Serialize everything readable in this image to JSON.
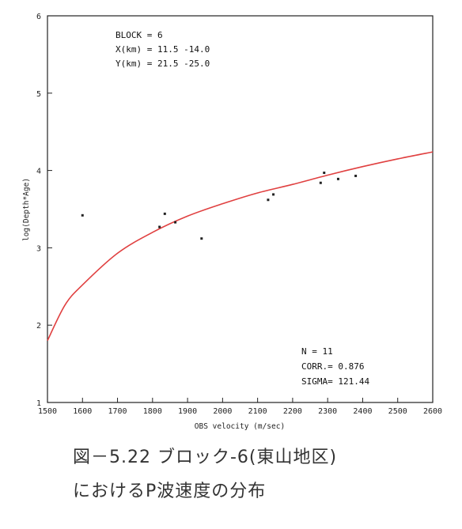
{
  "chart_data": {
    "type": "scatter",
    "xlabel": "OBS velocity (m/sec)",
    "ylabel": "log(Depth*Age)",
    "xlim": [
      1500,
      2600
    ],
    "ylim": [
      1,
      6
    ],
    "xticks": [
      "1500",
      "1600",
      "1700",
      "1800",
      "1900",
      "2000",
      "2100",
      "2200",
      "2300",
      "2400",
      "2500",
      "2600"
    ],
    "yticks": [
      "1",
      "2",
      "3",
      "4",
      "5",
      "6"
    ],
    "points": [
      {
        "x": 1600,
        "y": 3.42
      },
      {
        "x": 1820,
        "y": 3.27
      },
      {
        "x": 1835,
        "y": 3.44
      },
      {
        "x": 1865,
        "y": 3.33
      },
      {
        "x": 1940,
        "y": 3.12
      },
      {
        "x": 2130,
        "y": 3.62
      },
      {
        "x": 2145,
        "y": 3.69
      },
      {
        "x": 2280,
        "y": 3.84
      },
      {
        "x": 2290,
        "y": 3.97
      },
      {
        "x": 2330,
        "y": 3.89
      },
      {
        "x": 2380,
        "y": 3.93
      }
    ],
    "fit_curve": [
      {
        "x": 1500,
        "y": 1.8
      },
      {
        "x": 1550,
        "y": 2.26
      },
      {
        "x": 1600,
        "y": 2.52
      },
      {
        "x": 1700,
        "y": 2.93
      },
      {
        "x": 1800,
        "y": 3.2
      },
      {
        "x": 1900,
        "y": 3.41
      },
      {
        "x": 2000,
        "y": 3.57
      },
      {
        "x": 2100,
        "y": 3.71
      },
      {
        "x": 2200,
        "y": 3.82
      },
      {
        "x": 2300,
        "y": 3.94
      },
      {
        "x": 2400,
        "y": 4.05
      },
      {
        "x": 2500,
        "y": 4.15
      },
      {
        "x": 2600,
        "y": 4.24
      }
    ],
    "fit_color": "#e04040",
    "point_color": "#222222",
    "grid": false,
    "annotation_top": [
      "BLOCK = 6",
      "X(km) = 11.5  -14.0",
      "Y(km) = 21.5  -25.0"
    ],
    "annotation_bottom": [
      "N      = 11",
      "CORR.= 0.876",
      "SIGMA= 121.44"
    ]
  },
  "caption": {
    "line1": "図－5.22  ブロック-6(東山地区)",
    "line2": "におけるP波速度の分布"
  }
}
